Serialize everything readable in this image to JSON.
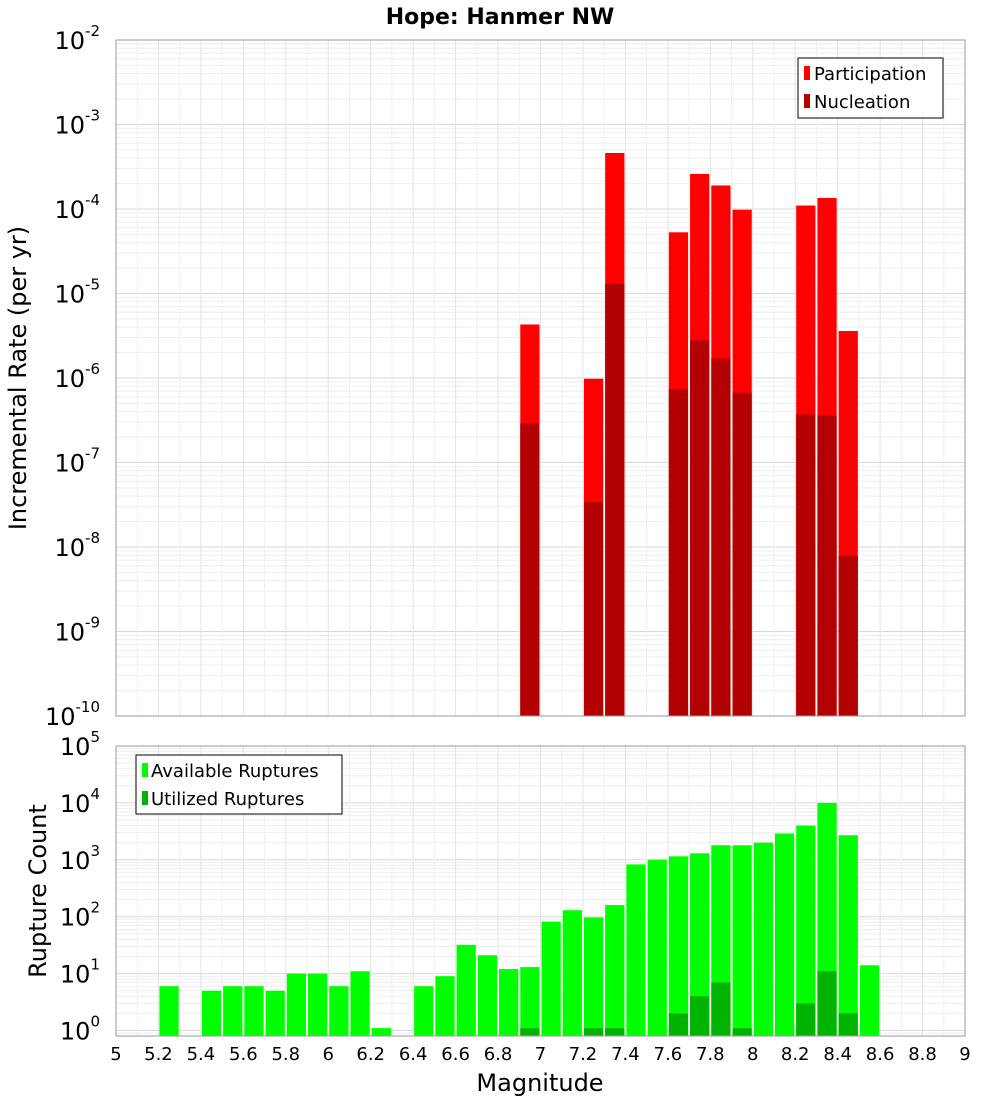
{
  "chart_data": [
    {
      "type": "bar",
      "title": "Hope: Hanmer NW",
      "ylabel": "Incremental Rate (per yr)",
      "yscale": "log",
      "ylim": [
        1e-10,
        0.01
      ],
      "xlim": [
        5,
        9
      ],
      "y_tick_exponents": [
        -10,
        -9,
        -8,
        -7,
        -6,
        -5,
        -4,
        -3,
        -2
      ],
      "bin_width": 0.1,
      "legend_position": "top-right",
      "series": [
        {
          "name": "Participation",
          "color": "#ff0000",
          "x": [
            6.95,
            7.25,
            7.35,
            7.65,
            7.75,
            7.85,
            7.95,
            8.25,
            8.35,
            8.45
          ],
          "values": [
            4.3e-06,
            9.8e-07,
            0.00046,
            5.3e-05,
            0.00026,
            0.00019,
            9.8e-05,
            0.00011,
            0.000135,
            3.6e-06
          ]
        },
        {
          "name": "Nucleation",
          "color": "#b30000",
          "x": [
            6.95,
            7.25,
            7.35,
            7.65,
            7.75,
            7.85,
            7.95,
            8.25,
            8.35,
            8.45
          ],
          "values": [
            2.9e-07,
            3.4e-08,
            1.3e-05,
            7.4e-07,
            2.8e-06,
            1.7e-06,
            6.7e-07,
            3.7e-07,
            3.6e-07,
            7.8e-09
          ]
        }
      ]
    },
    {
      "type": "bar",
      "ylabel": "Rupture Count",
      "xlabel": "Magnitude",
      "yscale": "log",
      "ylim": [
        0.8,
        100000
      ],
      "xlim": [
        5,
        9
      ],
      "y_tick_exponents": [
        0,
        1,
        2,
        3,
        4,
        5
      ],
      "x_ticks": [
        "5",
        "5.2",
        "5.4",
        "5.6",
        "5.8",
        "6",
        "6.2",
        "6.4",
        "6.6",
        "6.8",
        "7",
        "7.2",
        "7.4",
        "7.6",
        "7.8",
        "8",
        "8.2",
        "8.4",
        "8.6",
        "8.8",
        "9"
      ],
      "bin_width": 0.1,
      "legend_position": "top-left",
      "series": [
        {
          "name": "Available Ruptures",
          "color": "#00ff00",
          "x": [
            5.25,
            5.45,
            5.55,
            5.65,
            5.75,
            5.85,
            5.95,
            6.05,
            6.15,
            6.25,
            6.45,
            6.55,
            6.65,
            6.75,
            6.85,
            6.95,
            7.05,
            7.15,
            7.25,
            7.35,
            7.45,
            7.55,
            7.65,
            7.75,
            7.85,
            7.95,
            8.05,
            8.15,
            8.25,
            8.35,
            8.45,
            8.55
          ],
          "values": [
            6,
            5,
            6,
            6,
            5,
            10,
            10,
            6,
            11,
            1.1,
            6,
            9,
            32,
            21,
            12,
            13,
            82,
            130,
            97,
            160,
            830,
            1000,
            1150,
            1300,
            1800,
            1800,
            2000,
            2900,
            4000,
            10000,
            2700,
            14
          ]
        },
        {
          "name": "Utilized Ruptures",
          "color": "#00b300",
          "x": [
            6.95,
            7.25,
            7.35,
            7.65,
            7.75,
            7.85,
            7.95,
            8.25,
            8.35,
            8.45
          ],
          "values": [
            1.1,
            1.1,
            1.1,
            2,
            4,
            7,
            1.1,
            3,
            11,
            2
          ]
        }
      ]
    }
  ]
}
